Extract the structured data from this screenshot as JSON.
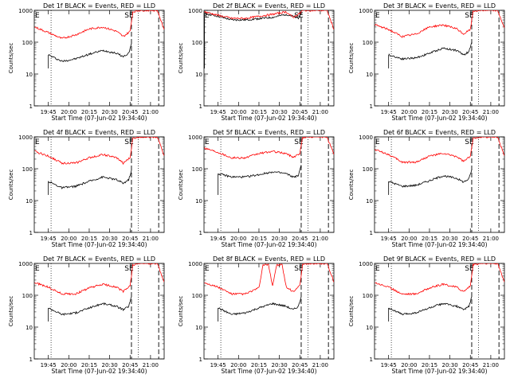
{
  "figure": {
    "xlabel": "Start Time (07-Jun-02 19:34:40)",
    "ylabel": "Counts/sec",
    "marker_label": "SE",
    "colors": {
      "events": "#000000",
      "lld": "#ff0000",
      "axes": "#000000",
      "background": "#ffffff"
    }
  },
  "chart_data": [
    {
      "type": "line",
      "title": "Det 1f BLACK = Events, RED = LLD",
      "x_ticks": [
        "19:45",
        "20:00",
        "20:15",
        "20:30",
        "20:45",
        "21:00"
      ],
      "y_scale": "log",
      "ylim": [
        1,
        1000
      ],
      "y_ticks": [
        "1",
        "10",
        "100",
        "1000"
      ],
      "xlim": [
        "19:34:40",
        "21:10"
      ],
      "annotations": [
        "E",
        "SE"
      ],
      "series": [
        {
          "name": "BLACK = Events",
          "x": [
            "19:45",
            "19:55",
            "20:05",
            "20:15",
            "20:25",
            "20:35",
            "20:40",
            "20:44",
            "20:46"
          ],
          "y": [
            40,
            25,
            30,
            42,
            55,
            45,
            35,
            45,
            90
          ]
        },
        {
          "name": "RED = LLD",
          "x": [
            "19:35",
            "19:45",
            "19:55",
            "20:05",
            "20:15",
            "20:25",
            "20:35",
            "20:40",
            "20:45",
            "20:47",
            "20:52",
            "21:05",
            "21:10"
          ],
          "y": [
            300,
            200,
            130,
            170,
            260,
            300,
            220,
            150,
            220,
            900,
            1000,
            1000,
            250
          ]
        }
      ]
    },
    {
      "type": "line",
      "title": "Det 2f BLACK = Events, RED = LLD",
      "x_ticks": [
        "19:45",
        "20:00",
        "20:15",
        "20:30",
        "20:45",
        "21:00"
      ],
      "y_scale": "log",
      "ylim": [
        1,
        1000
      ],
      "y_ticks": [
        "1",
        "10",
        "100",
        "1000"
      ],
      "xlim": [
        "19:34:40",
        "21:10"
      ],
      "annotations": [
        "E",
        "SE"
      ],
      "series": [
        {
          "name": "BLACK = Events",
          "x": [
            "19:35",
            "19:45",
            "19:55",
            "20:05",
            "20:15",
            "20:25",
            "20:35",
            "20:40",
            "20:44",
            "20:46"
          ],
          "y": [
            800,
            650,
            500,
            500,
            550,
            600,
            750,
            650,
            550,
            900
          ]
        },
        {
          "name": "RED = LLD",
          "x": [
            "19:35",
            "19:45",
            "19:55",
            "20:05",
            "20:15",
            "20:25",
            "20:35",
            "20:40",
            "20:45",
            "20:47",
            "20:52",
            "21:05",
            "21:10"
          ],
          "y": [
            900,
            700,
            560,
            560,
            650,
            750,
            900,
            600,
            800,
            1000,
            1000,
            1000,
            250
          ]
        }
      ]
    },
    {
      "type": "line",
      "title": "Det 3f BLACK = Events, RED = LLD",
      "x_ticks": [
        "19:45",
        "20:00",
        "20:15",
        "20:30",
        "20:45",
        "21:00"
      ],
      "y_scale": "log",
      "ylim": [
        1,
        1000
      ],
      "y_ticks": [
        "1",
        "10",
        "100",
        "1000"
      ],
      "xlim": [
        "19:34:40",
        "21:10"
      ],
      "annotations": [
        "E",
        "SE"
      ],
      "series": [
        {
          "name": "BLACK = Events",
          "x": [
            "19:45",
            "19:55",
            "20:05",
            "20:15",
            "20:25",
            "20:35",
            "20:40",
            "20:44",
            "20:46"
          ],
          "y": [
            40,
            30,
            32,
            45,
            65,
            55,
            40,
            50,
            100
          ]
        },
        {
          "name": "RED = LLD",
          "x": [
            "19:35",
            "19:45",
            "19:55",
            "20:05",
            "20:15",
            "20:25",
            "20:35",
            "20:40",
            "20:45",
            "20:47",
            "20:52",
            "21:05",
            "21:10"
          ],
          "y": [
            350,
            250,
            150,
            180,
            300,
            350,
            260,
            180,
            250,
            950,
            1000,
            1000,
            280
          ]
        }
      ]
    },
    {
      "type": "line",
      "title": "Det 4f BLACK = Events, RED = LLD",
      "x_ticks": [
        "19:45",
        "20:00",
        "20:15",
        "20:30",
        "20:45",
        "21:00"
      ],
      "y_scale": "log",
      "ylim": [
        1,
        1000
      ],
      "y_ticks": [
        "1",
        "10",
        "100",
        "1000"
      ],
      "xlim": [
        "19:34:40",
        "21:10"
      ],
      "annotations": [
        "E",
        "SE"
      ],
      "series": [
        {
          "name": "BLACK = Events",
          "x": [
            "19:45",
            "19:55",
            "20:05",
            "20:15",
            "20:25",
            "20:35",
            "20:40",
            "20:44",
            "20:46"
          ],
          "y": [
            40,
            25,
            28,
            40,
            55,
            45,
            35,
            45,
            90
          ]
        },
        {
          "name": "RED = LLD",
          "x": [
            "19:35",
            "19:45",
            "19:55",
            "20:05",
            "20:15",
            "20:25",
            "20:35",
            "20:40",
            "20:45",
            "20:47",
            "20:52",
            "21:05",
            "21:10"
          ],
          "y": [
            350,
            250,
            150,
            150,
            220,
            280,
            220,
            150,
            220,
            900,
            1000,
            1000,
            260
          ]
        }
      ]
    },
    {
      "type": "line",
      "title": "Det 5f BLACK = Events, RED = LLD",
      "x_ticks": [
        "19:45",
        "20:00",
        "20:15",
        "20:30",
        "20:45",
        "21:00"
      ],
      "y_scale": "log",
      "ylim": [
        1,
        1000
      ],
      "y_ticks": [
        "1",
        "10",
        "100",
        "1000"
      ],
      "xlim": [
        "19:34:40",
        "21:10"
      ],
      "annotations": [
        "E",
        "SE"
      ],
      "series": [
        {
          "name": "BLACK = Events",
          "x": [
            "19:45",
            "19:55",
            "20:05",
            "20:15",
            "20:25",
            "20:35",
            "20:40",
            "20:44",
            "20:46"
          ],
          "y": [
            70,
            55,
            55,
            65,
            80,
            70,
            55,
            60,
            130
          ]
        },
        {
          "name": "RED = LLD",
          "x": [
            "19:35",
            "19:45",
            "19:55",
            "20:05",
            "20:15",
            "20:25",
            "20:35",
            "20:40",
            "20:45",
            "20:47",
            "20:52",
            "21:05",
            "21:10"
          ],
          "y": [
            450,
            330,
            220,
            220,
            300,
            350,
            300,
            230,
            300,
            950,
            1000,
            1000,
            280
          ]
        }
      ]
    },
    {
      "type": "line",
      "title": "Det 6f BLACK = Events, RED = LLD",
      "x_ticks": [
        "19:45",
        "20:00",
        "20:15",
        "20:30",
        "20:45",
        "21:00"
      ],
      "y_scale": "log",
      "ylim": [
        1,
        1000
      ],
      "y_ticks": [
        "1",
        "10",
        "100",
        "1000"
      ],
      "xlim": [
        "19:34:40",
        "21:10"
      ],
      "annotations": [
        "E",
        "SE"
      ],
      "series": [
        {
          "name": "BLACK = Events",
          "x": [
            "19:45",
            "19:55",
            "20:05",
            "20:15",
            "20:25",
            "20:35",
            "20:40",
            "20:44",
            "20:46"
          ],
          "y": [
            40,
            28,
            30,
            42,
            60,
            50,
            38,
            48,
            95
          ]
        },
        {
          "name": "RED = LLD",
          "x": [
            "19:35",
            "19:45",
            "19:55",
            "20:05",
            "20:15",
            "20:25",
            "20:35",
            "20:40",
            "20:45",
            "20:47",
            "20:52",
            "21:05",
            "21:10"
          ],
          "y": [
            400,
            280,
            160,
            160,
            250,
            300,
            240,
            170,
            240,
            900,
            1000,
            1000,
            260
          ]
        }
      ]
    },
    {
      "type": "line",
      "title": "Det 7f BLACK = Events, RED = LLD",
      "x_ticks": [
        "19:45",
        "20:00",
        "20:15",
        "20:30",
        "20:45",
        "21:00"
      ],
      "y_scale": "log",
      "ylim": [
        1,
        1000
      ],
      "y_ticks": [
        "1",
        "10",
        "100",
        "1000"
      ],
      "xlim": [
        "19:34:40",
        "21:10"
      ],
      "annotations": [
        "E",
        "SE"
      ],
      "series": [
        {
          "name": "BLACK = Events",
          "x": [
            "19:45",
            "19:55",
            "20:05",
            "20:15",
            "20:25",
            "20:35",
            "20:40",
            "20:44",
            "20:46"
          ],
          "y": [
            40,
            25,
            28,
            40,
            55,
            45,
            35,
            45,
            90
          ]
        },
        {
          "name": "RED = LLD",
          "x": [
            "19:35",
            "19:45",
            "19:55",
            "20:05",
            "20:15",
            "20:25",
            "20:35",
            "20:40",
            "20:45",
            "20:47",
            "20:52",
            "21:05",
            "21:10"
          ],
          "y": [
            250,
            180,
            110,
            110,
            170,
            220,
            180,
            130,
            200,
            900,
            1000,
            1000,
            260
          ]
        }
      ]
    },
    {
      "type": "line",
      "title": "Det 8f BLACK = Events, RED = LLD",
      "x_ticks": [
        "19:45",
        "20:00",
        "20:15",
        "20:30",
        "20:45",
        "21:00"
      ],
      "y_scale": "log",
      "ylim": [
        1,
        1000
      ],
      "y_ticks": [
        "1",
        "10",
        "100",
        "1000"
      ],
      "xlim": [
        "19:34:40",
        "21:10"
      ],
      "annotations": [
        "E",
        "SE"
      ],
      "series": [
        {
          "name": "BLACK = Events",
          "x": [
            "19:45",
            "19:55",
            "20:05",
            "20:15",
            "20:25",
            "20:35",
            "20:40",
            "20:44",
            "20:46"
          ],
          "y": [
            40,
            25,
            28,
            40,
            55,
            45,
            35,
            45,
            90
          ]
        },
        {
          "name": "RED = LLD",
          "x": [
            "19:35",
            "19:45",
            "19:55",
            "20:05",
            "20:15",
            "20:18",
            "20:22",
            "20:25",
            "20:28",
            "20:32",
            "20:35",
            "20:40",
            "20:45",
            "20:47",
            "20:52",
            "21:05",
            "21:10"
          ],
          "y": [
            250,
            180,
            110,
            110,
            170,
            900,
            900,
            200,
            900,
            900,
            180,
            130,
            200,
            900,
            1000,
            1000,
            260
          ]
        }
      ]
    },
    {
      "type": "line",
      "title": "Det 9f BLACK = Events, RED = LLD",
      "x_ticks": [
        "19:45",
        "20:00",
        "20:15",
        "20:30",
        "20:45",
        "21:00"
      ],
      "y_scale": "log",
      "ylim": [
        1,
        1000
      ],
      "y_ticks": [
        "1",
        "10",
        "100",
        "1000"
      ],
      "xlim": [
        "19:34:40",
        "21:10"
      ],
      "annotations": [
        "E",
        "SE"
      ],
      "series": [
        {
          "name": "BLACK = Events",
          "x": [
            "19:45",
            "19:55",
            "20:05",
            "20:15",
            "20:25",
            "20:35",
            "20:40",
            "20:44",
            "20:46"
          ],
          "y": [
            40,
            25,
            28,
            40,
            55,
            45,
            35,
            45,
            90
          ]
        },
        {
          "name": "RED = LLD",
          "x": [
            "19:35",
            "19:45",
            "19:55",
            "20:05",
            "20:15",
            "20:25",
            "20:35",
            "20:40",
            "20:45",
            "20:47",
            "20:52",
            "21:05",
            "21:10"
          ],
          "y": [
            250,
            180,
            110,
            110,
            170,
            220,
            180,
            130,
            200,
            900,
            1000,
            1000,
            260
          ]
        }
      ]
    }
  ]
}
